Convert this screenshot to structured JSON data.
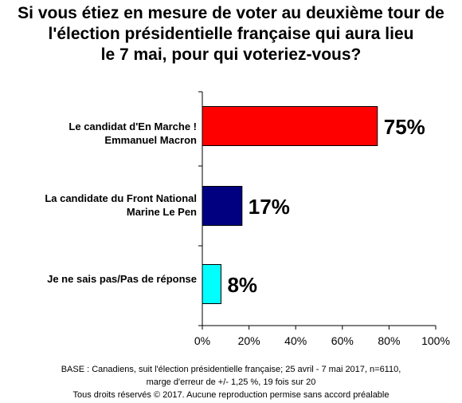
{
  "title_lines": [
    "Si vous étiez en mesure de voter au deuxième tour de",
    "l'élection présidentielle française qui aura lieu",
    "le 7 mai, pour qui voteriez-vous?"
  ],
  "chart_data": {
    "type": "bar",
    "orientation": "horizontal",
    "categories": [
      [
        "Le candidat d'En Marche !",
        "Emmanuel Macron"
      ],
      [
        "La candidate du Front National",
        "Marine Le Pen"
      ],
      [
        "Je ne sais pas/Pas de réponse"
      ]
    ],
    "values": [
      75,
      17,
      8
    ],
    "data_labels": [
      "75%",
      "17%",
      "8%"
    ],
    "colors": [
      "#ff0000",
      "#000080",
      "#00ffff"
    ],
    "xlim": [
      0,
      100
    ],
    "x_ticks": [
      "0%",
      "20%",
      "40%",
      "60%",
      "80%",
      "100%"
    ],
    "grid": false,
    "legend": "none"
  },
  "footer_lines": [
    "BASE : Canadiens,  suit l'élection présidentielle française; 25 avril - 7 mai 2017,  n=6110,",
    "marge d'erreur de +/- 1,25 %, 19 fois sur 20",
    "Tous droits réservés © 2017.  Aucune reproduction permise sans accord préalable"
  ]
}
